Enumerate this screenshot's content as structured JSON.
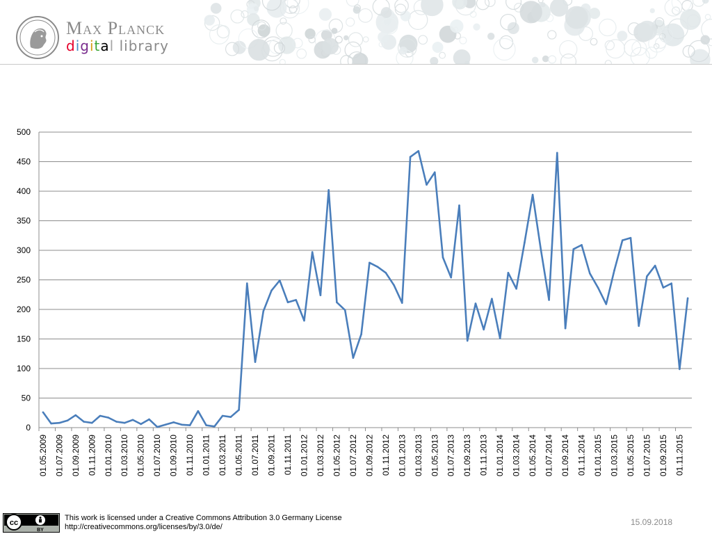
{
  "header": {
    "brand_title": "Max Planck",
    "brand_subtitle_letters": [
      "d",
      "i",
      "g",
      "i",
      "t",
      "a",
      "l",
      " ",
      "l",
      "i",
      "b",
      "r",
      "a",
      "r",
      "y"
    ],
    "brand_colors": [
      "#e5002b",
      "#4b8fc7",
      "#7a2e8e",
      "#d4a017",
      "#3ba637",
      "#000000",
      "#a6a6a6"
    ]
  },
  "chart_data": {
    "type": "line",
    "x": [
      "01.05.2009",
      "01.06.2009",
      "01.07.2009",
      "01.08.2009",
      "01.09.2009",
      "01.10.2009",
      "01.11.2009",
      "01.12.2009",
      "01.01.2010",
      "01.02.2010",
      "01.03.2010",
      "01.04.2010",
      "01.05.2010",
      "01.06.2010",
      "01.07.2010",
      "01.08.2010",
      "01.09.2010",
      "01.10.2010",
      "01.11.2010",
      "01.12.2010",
      "01.01.2011",
      "01.02.2011",
      "01.03.2011",
      "01.04.2011",
      "01.05.2011",
      "01.06.2011",
      "01.07.2011",
      "01.08.2011",
      "01.09.2011",
      "01.10.2011",
      "01.11.2011",
      "01.12.2011",
      "01.01.2012",
      "01.02.2012",
      "01.03.2012",
      "01.04.2012",
      "01.05.2012",
      "01.06.2012",
      "01.07.2012",
      "01.08.2012",
      "01.09.2012",
      "01.10.2012",
      "01.11.2012",
      "01.12.2012",
      "01.01.2013",
      "01.02.2013",
      "01.03.2013",
      "01.04.2013",
      "01.05.2013",
      "01.06.2013",
      "01.07.2013",
      "01.08.2013",
      "01.09.2013",
      "01.10.2013",
      "01.11.2013",
      "01.12.2013",
      "01.01.2014",
      "01.02.2014",
      "01.03.2014",
      "01.04.2014",
      "01.05.2014",
      "01.06.2014",
      "01.07.2014",
      "01.08.2014",
      "01.09.2014",
      "01.10.2014",
      "01.11.2014",
      "01.12.2014",
      "01.01.2015",
      "01.02.2015",
      "01.03.2015",
      "01.04.2015",
      "01.05.2015",
      "01.06.2015",
      "01.07.2015",
      "01.08.2015",
      "01.09.2015",
      "01.10.2015",
      "01.11.2015",
      "01.12.2015"
    ],
    "tick_labels": [
      "01.05.2009",
      "01.07.2009",
      "01.09.2009",
      "01.11.2009",
      "01.01.2010",
      "01.03.2010",
      "01.05.2010",
      "01.07.2010",
      "01.09.2010",
      "01.11.2010",
      "01.01.2011",
      "01.03.2011",
      "01.05.2011",
      "01.07.2011",
      "01.09.2011",
      "01.11.2011",
      "01.01.2012",
      "01.03.2012",
      "01.05.2012",
      "01.07.2012",
      "01.09.2012",
      "01.11.2012",
      "01.01.2013",
      "01.03.2013",
      "01.05.2013",
      "01.07.2013",
      "01.09.2013",
      "01.11.2013",
      "01.01.2014",
      "01.03.2014",
      "01.05.2014",
      "01.07.2014",
      "01.09.2014",
      "01.11.2014",
      "01.01.2015",
      "01.03.2015",
      "01.05.2015",
      "01.07.2015",
      "01.09.2015",
      "01.11.2015"
    ],
    "y": [
      26,
      7,
      8,
      12,
      21,
      10,
      8,
      20,
      17,
      10,
      8,
      13,
      6,
      14,
      1,
      5,
      9,
      5,
      4,
      28,
      4,
      2,
      20,
      18,
      30,
      244,
      111,
      197,
      232,
      249,
      212,
      216,
      181,
      297,
      224,
      402,
      212,
      199,
      118,
      158,
      279,
      272,
      262,
      241,
      211,
      458,
      468,
      411,
      432,
      288,
      254,
      376,
      147,
      210,
      166,
      218,
      151,
      262,
      235,
      313,
      394,
      301,
      216,
      465,
      168,
      302,
      309,
      261,
      237,
      209,
      266,
      317,
      321,
      172,
      256,
      274,
      237,
      244,
      99,
      219
    ],
    "yticks": [
      0,
      50,
      100,
      150,
      200,
      250,
      300,
      350,
      400,
      450,
      500
    ],
    "ylim": [
      0,
      500
    ],
    "grid": true,
    "legend": "none",
    "line_color": "#4a7ebb"
  },
  "footer": {
    "license_line1": "This work is licensed under a Creative Commons Attribution 3.0 Germany License",
    "license_line2": "http://creativecommons.org/licenses/by/3.0/de/",
    "date": "15.09.2018",
    "cc_label": "cc",
    "by_label": "BY"
  }
}
